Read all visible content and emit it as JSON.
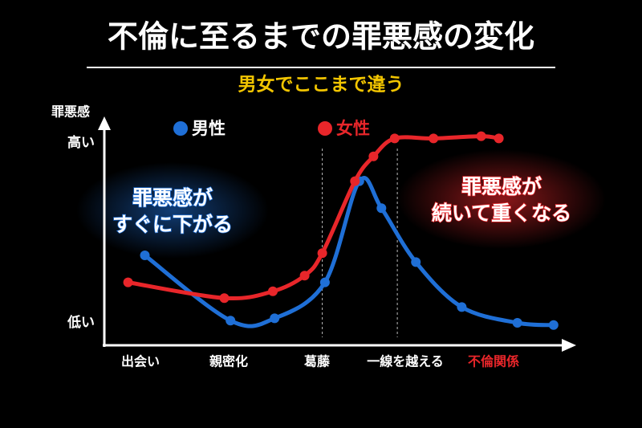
{
  "chart_data": {
    "type": "line",
    "title": "不倫に至るまでの罪悪感の変化",
    "subtitle": "男女でここまで違う",
    "y_label": "罪悪感",
    "xlim": [
      -0.4,
      4.9
    ],
    "xticks": [
      {
        "value": 0,
        "label": "出会い"
      },
      {
        "value": 1,
        "label": "親密化"
      },
      {
        "value": 2,
        "label": "葛藤"
      },
      {
        "value": 3,
        "label": "一線を越える"
      },
      {
        "value": 4,
        "label": "不倫関係"
      }
    ],
    "highlight_tick": 4,
    "highlight_color": "#e8262a",
    "ylim": [
      0,
      100
    ],
    "yticks": [
      {
        "value": 90,
        "label": "高い"
      },
      {
        "value": 10,
        "label": "低い"
      }
    ],
    "vlines": [
      2.06,
      2.91
    ],
    "series": [
      {
        "name": "男性",
        "color": "#1f6fd6",
        "x": [
          0.05,
          1.02,
          1.52,
          2.09,
          2.48,
          2.73,
          3.12,
          3.64,
          4.27,
          4.68
        ],
        "values": [
          40,
          11,
          12,
          28,
          73,
          61,
          37,
          17,
          10,
          9
        ]
      },
      {
        "name": "女性",
        "color": "#e8262a",
        "x": [
          -0.14,
          0.95,
          1.5,
          1.86,
          2.06,
          2.43,
          2.64,
          2.88,
          3.32,
          3.86,
          4.06
        ],
        "values": [
          28,
          21,
          24,
          31,
          41,
          73,
          84,
          92,
          92,
          93,
          92
        ]
      }
    ],
    "annotations": [
      {
        "lines": [
          "罪悪感が",
          "すぐに下がる"
        ],
        "color": "#1f6fd6"
      },
      {
        "lines": [
          "罪悪感が",
          "続いて重くなる"
        ],
        "color": "#e8262a"
      }
    ]
  }
}
